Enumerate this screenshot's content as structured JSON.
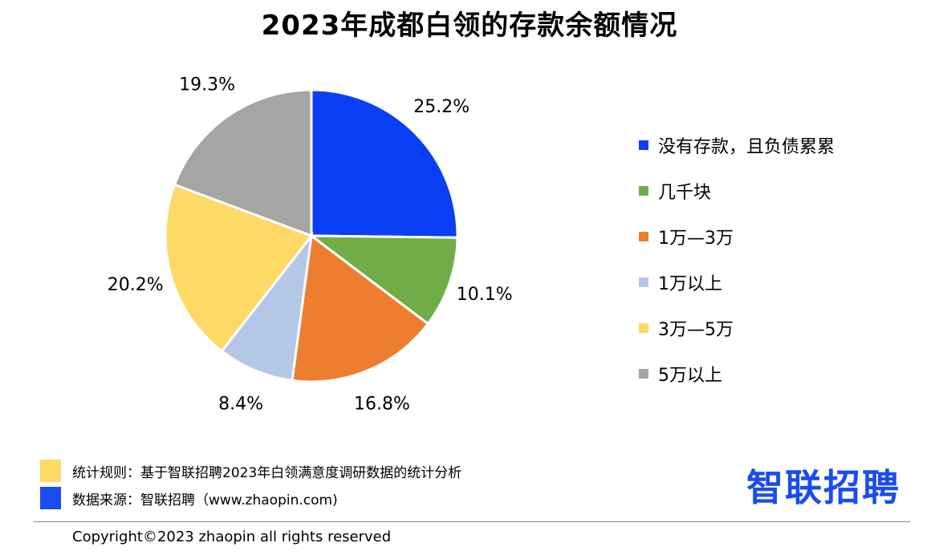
{
  "title": "2023年成都白领的存款余额情况",
  "chart_data": {
    "type": "pie",
    "title": "2023年成都白领的存款余额情况",
    "slices": [
      {
        "label": "没有存款，且负债累累",
        "value": 25.2,
        "display": "25.2%",
        "color": "#0a3ff5"
      },
      {
        "label": "几千块",
        "value": 10.1,
        "display": "10.1%",
        "color": "#70ad47"
      },
      {
        "label": "1万—3万",
        "value": 16.8,
        "display": "16.8%",
        "color": "#ed7d31"
      },
      {
        "label": "1万以上",
        "value": 8.4,
        "display": "8.4%",
        "color": "#b4c7e7"
      },
      {
        "label": "3万—5万",
        "value": 20.2,
        "display": "20.2%",
        "color": "#ffd966"
      },
      {
        "label": "5万以上",
        "value": 19.3,
        "display": "19.3%",
        "color": "#a5a5a5"
      }
    ],
    "legend_position": "right"
  },
  "notes": {
    "rules": {
      "text": "统计规则：基于智联招聘2023年白领满意度调研数据的统计分析",
      "color": "#ffd966"
    },
    "source": {
      "text": "数据来源：智联招聘（www.zhaopin.com)",
      "color": "#1a4cf0"
    }
  },
  "brand": {
    "logo_text": "智联招聘",
    "color": "#1a4cf0"
  },
  "copyright": "Copyright©2023 zhaopin all rights reserved"
}
